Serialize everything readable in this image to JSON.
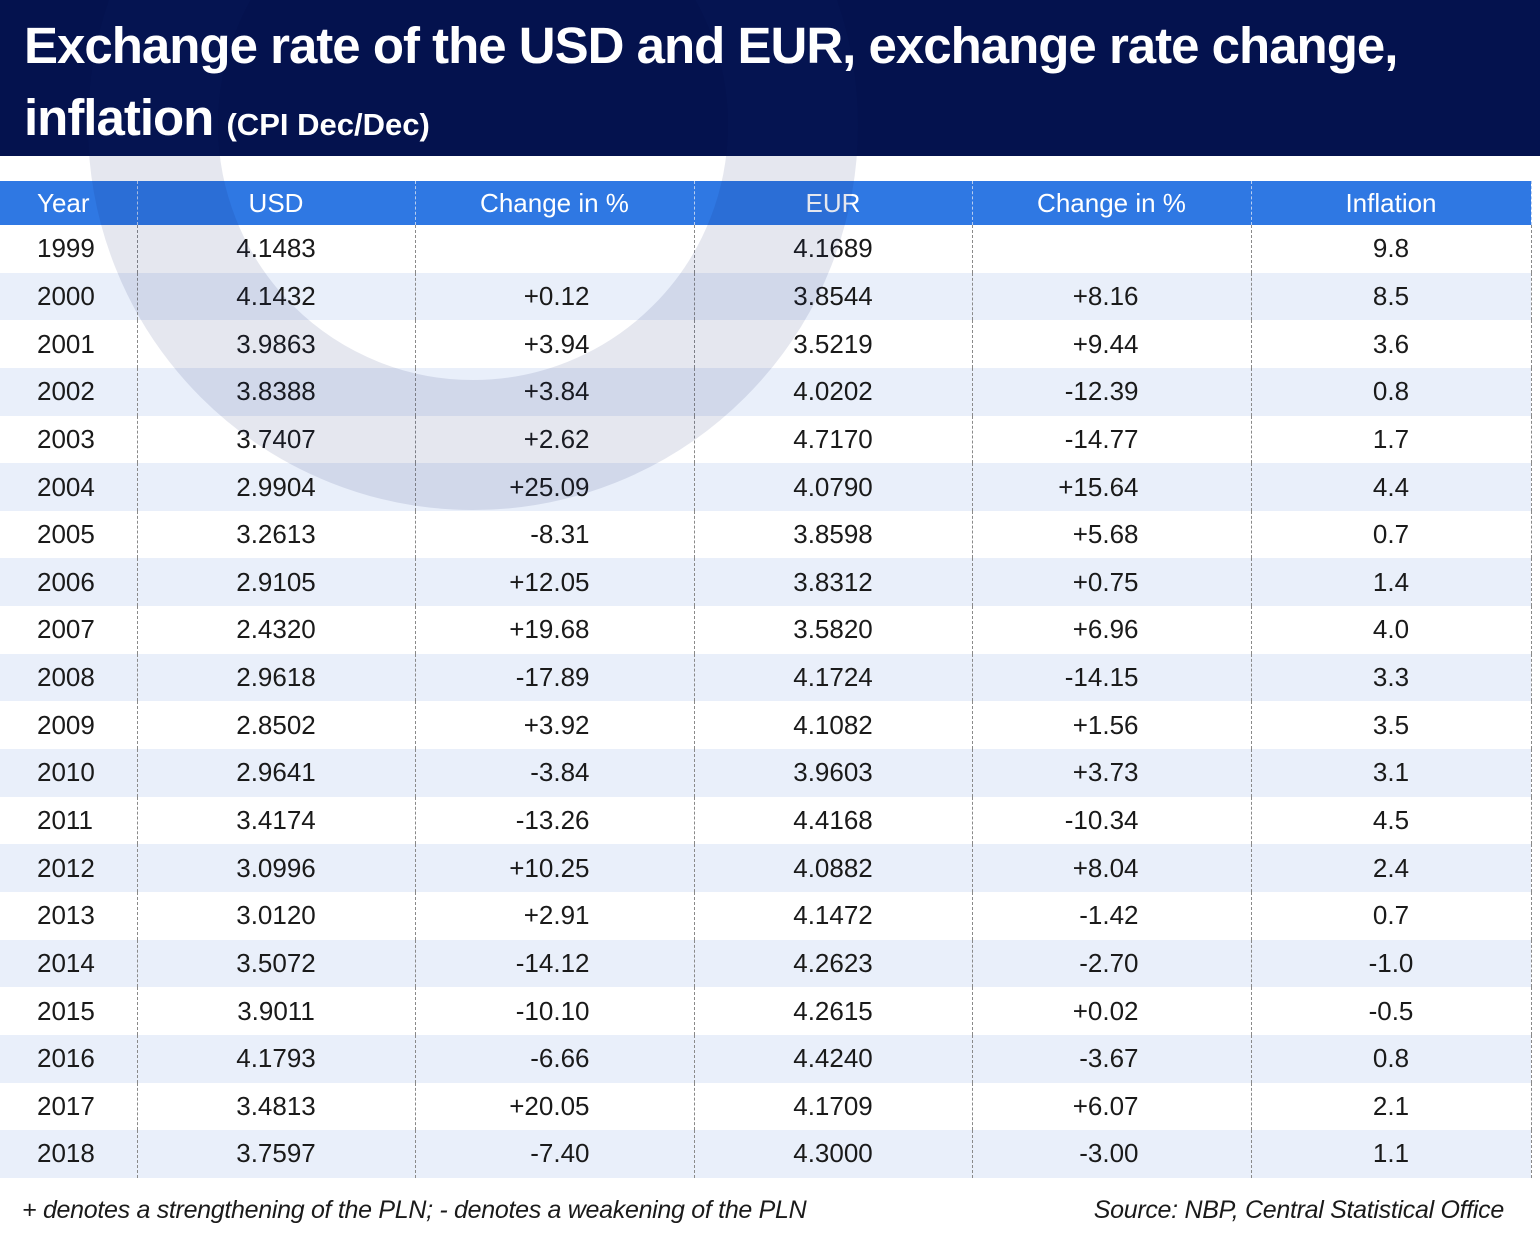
{
  "title": {
    "main": "Exchange rate of the USD and EUR, exchange rate change,",
    "line2": "inflation",
    "subtitle": "(CPI Dec/Dec)"
  },
  "chart_data": {
    "type": "table",
    "columns": [
      "Year",
      "USD",
      "Change in %",
      "EUR",
      "Change in %",
      "Inflation"
    ],
    "rows": [
      [
        "1999",
        "4.1483",
        "",
        "4.1689",
        "",
        "9.8"
      ],
      [
        "2000",
        "4.1432",
        "+0.12",
        "3.8544",
        "+8.16",
        "8.5"
      ],
      [
        "2001",
        "3.9863",
        "+3.94",
        "3.5219",
        "+9.44",
        "3.6"
      ],
      [
        "2002",
        "3.8388",
        "+3.84",
        "4.0202",
        "-12.39",
        "0.8"
      ],
      [
        "2003",
        "3.7407",
        "+2.62",
        "4.7170",
        "-14.77",
        "1.7"
      ],
      [
        "2004",
        "2.9904",
        "+25.09",
        "4.0790",
        "+15.64",
        "4.4"
      ],
      [
        "2005",
        "3.2613",
        "-8.31",
        "3.8598",
        "+5.68",
        "0.7"
      ],
      [
        "2006",
        "2.9105",
        "+12.05",
        "3.8312",
        "+0.75",
        "1.4"
      ],
      [
        "2007",
        "2.4320",
        "+19.68",
        "3.5820",
        "+6.96",
        "4.0"
      ],
      [
        "2008",
        "2.9618",
        "-17.89",
        "4.1724",
        "-14.15",
        "3.3"
      ],
      [
        "2009",
        "2.8502",
        "+3.92",
        "4.1082",
        "+1.56",
        "3.5"
      ],
      [
        "2010",
        "2.9641",
        "-3.84",
        "3.9603",
        "+3.73",
        "3.1"
      ],
      [
        "2011",
        "3.4174",
        "-13.26",
        "4.4168",
        "-10.34",
        "4.5"
      ],
      [
        "2012",
        "3.0996",
        "+10.25",
        "4.0882",
        "+8.04",
        "2.4"
      ],
      [
        "2013",
        "3.0120",
        "+2.91",
        "4.1472",
        "-1.42",
        "0.7"
      ],
      [
        "2014",
        "3.5072",
        "-14.12",
        "4.2623",
        "-2.70",
        "-1.0"
      ],
      [
        "2015",
        "3.9011",
        "-10.10",
        "4.2615",
        "+0.02",
        "-0.5"
      ],
      [
        "2016",
        "4.1793",
        "-6.66",
        "4.4240",
        "-3.67",
        "0.8"
      ],
      [
        "2017",
        "3.4813",
        "+20.05",
        "4.1709",
        "+6.07",
        "2.1"
      ],
      [
        "2018",
        "3.7597",
        "-7.40",
        "4.3000",
        "-3.00",
        "1.1"
      ]
    ]
  },
  "footer": {
    "note": "+ denotes a strengthening of the PLN;  - denotes a weakening of the PLN",
    "source": "Source: NBP, Central Statistical Office"
  },
  "colors": {
    "header_bg": "#04124e",
    "table_header_bg": "#2f78e3",
    "stripe_bg": "#e9effa"
  }
}
